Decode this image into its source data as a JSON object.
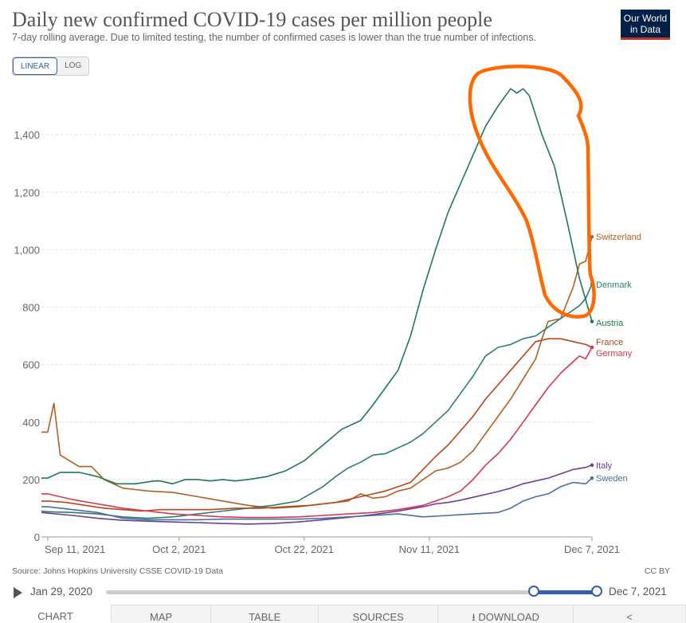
{
  "title": "Daily new confirmed COVID-19 cases per million people",
  "subtitle": "7-day rolling average. Due to limited testing, the number of confirmed cases is lower than the true number of infections.",
  "logo": {
    "line1": "Our World",
    "line2": "in Data"
  },
  "scale_toggle": {
    "linear": "LINEAR",
    "log": "LOG"
  },
  "source": "Source: Johns Hopkins University CSSE COVID-19 Data",
  "license": "CC BY",
  "timeline": {
    "start": "Jan 29, 2020",
    "end": "Dec 7, 2021"
  },
  "tabs": {
    "chart": "CHART",
    "map": "MAP",
    "table": "TABLE",
    "sources": "SOURCES",
    "download": "DOWNLOAD"
  },
  "colors": {
    "Switzerland": "#b35f1f",
    "Denmark": "#2a7f74",
    "Austria": "#1f7a4c",
    "France": "#b8461c",
    "Germany": "#d3394f",
    "Italy": "#6b3f95",
    "Sweden": "#4a6c9e",
    "annotation": "#ff6a00"
  },
  "chart_data": {
    "type": "line",
    "title": "Daily new confirmed COVID-19 cases per million people",
    "xlabel": "",
    "ylabel": "",
    "ylim": [
      0,
      1600
    ],
    "x_ticks": [
      {
        "label": "Sep 11, 2021",
        "day": 0
      },
      {
        "label": "Oct 2, 2021",
        "day": 21
      },
      {
        "label": "Oct 22, 2021",
        "day": 41
      },
      {
        "label": "Nov 11, 2021",
        "day": 61
      },
      {
        "label": "Dec 7, 2021",
        "day": 87
      }
    ],
    "y_ticks": [
      {
        "label": "0",
        "value": 0
      },
      {
        "label": "200",
        "value": 200
      },
      {
        "label": "400",
        "value": 400
      },
      {
        "label": "600",
        "value": 600
      },
      {
        "label": "800",
        "value": 800
      },
      {
        "label": "1,000",
        "value": 1000
      },
      {
        "label": "1,200",
        "value": 1200
      },
      {
        "label": "1,400",
        "value": 1400
      }
    ],
    "x_range_days": [
      -1,
      87
    ],
    "series": [
      {
        "name": "Switzerland",
        "points": [
          [
            -1,
            365
          ],
          [
            0,
            365
          ],
          [
            1,
            465
          ],
          [
            2,
            285
          ],
          [
            5,
            245
          ],
          [
            7,
            245
          ],
          [
            9,
            200
          ],
          [
            12,
            170
          ],
          [
            14,
            165
          ],
          [
            16,
            160
          ],
          [
            20,
            155
          ],
          [
            24,
            140
          ],
          [
            28,
            125
          ],
          [
            32,
            110
          ],
          [
            36,
            100
          ],
          [
            40,
            105
          ],
          [
            44,
            115
          ],
          [
            48,
            125
          ],
          [
            50,
            150
          ],
          [
            52,
            135
          ],
          [
            54,
            140
          ],
          [
            56,
            160
          ],
          [
            58,
            170
          ],
          [
            60,
            200
          ],
          [
            62,
            230
          ],
          [
            64,
            240
          ],
          [
            66,
            260
          ],
          [
            68,
            300
          ],
          [
            70,
            360
          ],
          [
            72,
            420
          ],
          [
            74,
            480
          ],
          [
            76,
            550
          ],
          [
            78,
            620
          ],
          [
            79,
            690
          ],
          [
            80,
            750
          ],
          [
            82,
            760
          ],
          [
            84,
            870
          ],
          [
            85,
            950
          ],
          [
            86,
            960
          ],
          [
            87,
            1045
          ]
        ]
      },
      {
        "name": "Denmark",
        "points": [
          [
            -1,
            90
          ],
          [
            0,
            88
          ],
          [
            4,
            85
          ],
          [
            8,
            80
          ],
          [
            12,
            70
          ],
          [
            16,
            65
          ],
          [
            20,
            70
          ],
          [
            24,
            80
          ],
          [
            28,
            90
          ],
          [
            32,
            100
          ],
          [
            36,
            110
          ],
          [
            40,
            125
          ],
          [
            42,
            150
          ],
          [
            44,
            175
          ],
          [
            46,
            210
          ],
          [
            48,
            240
          ],
          [
            50,
            260
          ],
          [
            52,
            285
          ],
          [
            54,
            290
          ],
          [
            56,
            310
          ],
          [
            58,
            330
          ],
          [
            60,
            360
          ],
          [
            62,
            400
          ],
          [
            64,
            440
          ],
          [
            66,
            500
          ],
          [
            68,
            560
          ],
          [
            70,
            630
          ],
          [
            72,
            660
          ],
          [
            74,
            670
          ],
          [
            76,
            690
          ],
          [
            78,
            700
          ],
          [
            80,
            730
          ],
          [
            82,
            760
          ],
          [
            84,
            790
          ],
          [
            85,
            805
          ],
          [
            86,
            830
          ],
          [
            87,
            880
          ]
        ]
      },
      {
        "name": "Austria",
        "points": [
          [
            -1,
            205
          ],
          [
            0,
            205
          ],
          [
            2,
            225
          ],
          [
            5,
            225
          ],
          [
            8,
            210
          ],
          [
            11,
            185
          ],
          [
            14,
            185
          ],
          [
            17,
            195
          ],
          [
            18,
            195
          ],
          [
            20,
            185
          ],
          [
            22,
            200
          ],
          [
            24,
            200
          ],
          [
            26,
            195
          ],
          [
            28,
            200
          ],
          [
            30,
            195
          ],
          [
            32,
            200
          ],
          [
            35,
            210
          ],
          [
            38,
            230
          ],
          [
            41,
            265
          ],
          [
            44,
            320
          ],
          [
            47,
            375
          ],
          [
            50,
            405
          ],
          [
            52,
            460
          ],
          [
            54,
            520
          ],
          [
            56,
            580
          ],
          [
            58,
            700
          ],
          [
            60,
            860
          ],
          [
            62,
            1000
          ],
          [
            64,
            1130
          ],
          [
            66,
            1230
          ],
          [
            68,
            1330
          ],
          [
            70,
            1430
          ],
          [
            72,
            1500
          ],
          [
            74,
            1560
          ],
          [
            75,
            1545
          ],
          [
            76,
            1560
          ],
          [
            77,
            1535
          ],
          [
            79,
            1400
          ],
          [
            81,
            1290
          ],
          [
            83,
            1100
          ],
          [
            85,
            900
          ],
          [
            87,
            750
          ]
        ]
      },
      {
        "name": "France",
        "points": [
          [
            -1,
            125
          ],
          [
            0,
            125
          ],
          [
            3,
            120
          ],
          [
            6,
            110
          ],
          [
            9,
            100
          ],
          [
            12,
            95
          ],
          [
            15,
            90
          ],
          [
            18,
            95
          ],
          [
            22,
            95
          ],
          [
            26,
            95
          ],
          [
            30,
            100
          ],
          [
            34,
            100
          ],
          [
            38,
            105
          ],
          [
            42,
            110
          ],
          [
            46,
            120
          ],
          [
            50,
            140
          ],
          [
            54,
            160
          ],
          [
            58,
            190
          ],
          [
            60,
            235
          ],
          [
            62,
            280
          ],
          [
            64,
            320
          ],
          [
            66,
            370
          ],
          [
            68,
            420
          ],
          [
            70,
            480
          ],
          [
            72,
            530
          ],
          [
            74,
            580
          ],
          [
            76,
            630
          ],
          [
            78,
            680
          ],
          [
            80,
            690
          ],
          [
            82,
            690
          ],
          [
            84,
            680
          ],
          [
            86,
            670
          ],
          [
            87,
            660
          ]
        ]
      },
      {
        "name": "Germany",
        "points": [
          [
            -1,
            150
          ],
          [
            0,
            150
          ],
          [
            4,
            130
          ],
          [
            8,
            115
          ],
          [
            12,
            100
          ],
          [
            16,
            90
          ],
          [
            20,
            80
          ],
          [
            24,
            75
          ],
          [
            28,
            70
          ],
          [
            32,
            68
          ],
          [
            36,
            68
          ],
          [
            40,
            70
          ],
          [
            44,
            75
          ],
          [
            48,
            80
          ],
          [
            52,
            85
          ],
          [
            56,
            95
          ],
          [
            60,
            110
          ],
          [
            62,
            125
          ],
          [
            64,
            140
          ],
          [
            66,
            160
          ],
          [
            68,
            200
          ],
          [
            70,
            250
          ],
          [
            72,
            290
          ],
          [
            74,
            340
          ],
          [
            76,
            400
          ],
          [
            78,
            460
          ],
          [
            80,
            520
          ],
          [
            82,
            570
          ],
          [
            84,
            610
          ],
          [
            85,
            630
          ],
          [
            86,
            620
          ],
          [
            87,
            660
          ]
        ]
      },
      {
        "name": "Italy",
        "points": [
          [
            -1,
            85
          ],
          [
            0,
            83
          ],
          [
            4,
            75
          ],
          [
            8,
            65
          ],
          [
            12,
            58
          ],
          [
            16,
            55
          ],
          [
            20,
            52
          ],
          [
            24,
            50
          ],
          [
            28,
            47
          ],
          [
            32,
            45
          ],
          [
            36,
            47
          ],
          [
            40,
            52
          ],
          [
            44,
            60
          ],
          [
            48,
            68
          ],
          [
            52,
            78
          ],
          [
            56,
            90
          ],
          [
            60,
            105
          ],
          [
            62,
            115
          ],
          [
            64,
            120
          ],
          [
            66,
            128
          ],
          [
            68,
            138
          ],
          [
            70,
            148
          ],
          [
            72,
            158
          ],
          [
            74,
            170
          ],
          [
            76,
            185
          ],
          [
            78,
            195
          ],
          [
            80,
            205
          ],
          [
            82,
            220
          ],
          [
            84,
            235
          ],
          [
            86,
            242
          ],
          [
            87,
            250
          ]
        ]
      },
      {
        "name": "Sweden",
        "points": [
          [
            -1,
            105
          ],
          [
            0,
            105
          ],
          [
            4,
            95
          ],
          [
            8,
            85
          ],
          [
            12,
            65
          ],
          [
            16,
            60
          ],
          [
            20,
            60
          ],
          [
            24,
            60
          ],
          [
            28,
            62
          ],
          [
            32,
            62
          ],
          [
            36,
            62
          ],
          [
            40,
            62
          ],
          [
            44,
            65
          ],
          [
            48,
            70
          ],
          [
            52,
            75
          ],
          [
            56,
            80
          ],
          [
            60,
            70
          ],
          [
            64,
            75
          ],
          [
            68,
            80
          ],
          [
            72,
            85
          ],
          [
            74,
            100
          ],
          [
            76,
            125
          ],
          [
            78,
            140
          ],
          [
            80,
            150
          ],
          [
            82,
            175
          ],
          [
            84,
            190
          ],
          [
            86,
            185
          ],
          [
            87,
            205
          ]
        ]
      }
    ]
  }
}
